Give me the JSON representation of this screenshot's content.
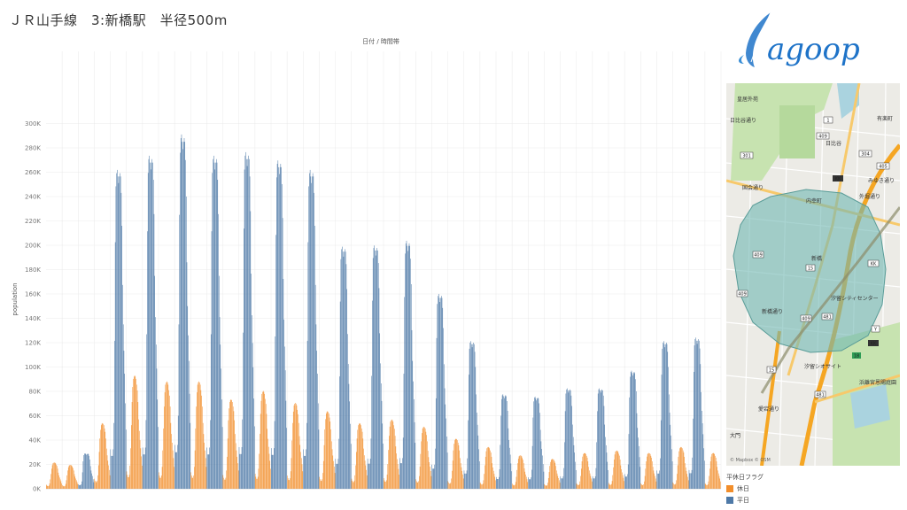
{
  "title": "ＪＲ山手線　3:新橋駅　半径500m",
  "chart_data": {
    "type": "bar",
    "xlabel": "日付 / 時間帯",
    "ylabel": "population",
    "ylim": [
      0,
      320000
    ],
    "yticks": [
      0,
      20000,
      40000,
      60000,
      80000,
      100000,
      120000,
      140000,
      160000,
      180000,
      200000,
      220000,
      240000,
      260000,
      280000,
      300000
    ],
    "ytick_labels": [
      "0K",
      "20K",
      "40K",
      "60K",
      "80K",
      "100K",
      "120K",
      "140K",
      "160K",
      "180K",
      "200K",
      "220K",
      "240K",
      "260K",
      "280K",
      "300K"
    ],
    "grid": true,
    "legend_position": "bottom-right",
    "legend_title": "平休日フラグ",
    "series": [
      {
        "name": "休日",
        "color": "#f28e2b"
      },
      {
        "name": "平日",
        "color": "#4e79a7"
      }
    ],
    "days": [
      {
        "flag": "休日",
        "peak": 22000
      },
      {
        "flag": "休日",
        "peak": 20000
      },
      {
        "flag": "平日",
        "peak": 30000
      },
      {
        "flag": "休日",
        "peak": 55000
      },
      {
        "flag": "平日",
        "peak": 270000
      },
      {
        "flag": "休日",
        "peak": 95000
      },
      {
        "flag": "平日",
        "peak": 282000
      },
      {
        "flag": "休日",
        "peak": 90000
      },
      {
        "flag": "平日",
        "peak": 300000
      },
      {
        "flag": "休日",
        "peak": 90000
      },
      {
        "flag": "平日",
        "peak": 282000
      },
      {
        "flag": "休日",
        "peak": 75000
      },
      {
        "flag": "平日",
        "peak": 285000
      },
      {
        "flag": "休日",
        "peak": 82000
      },
      {
        "flag": "平日",
        "peak": 278000
      },
      {
        "flag": "休日",
        "peak": 72000
      },
      {
        "flag": "平日",
        "peak": 270000
      },
      {
        "flag": "休日",
        "peak": 65000
      },
      {
        "flag": "平日",
        "peak": 205000
      },
      {
        "flag": "休日",
        "peak": 55000
      },
      {
        "flag": "平日",
        "peak": 206000
      },
      {
        "flag": "休日",
        "peak": 58000
      },
      {
        "flag": "平日",
        "peak": 210000
      },
      {
        "flag": "休日",
        "peak": 52000
      },
      {
        "flag": "平日",
        "peak": 165000
      },
      {
        "flag": "休日",
        "peak": 42000
      },
      {
        "flag": "平日",
        "peak": 125000
      },
      {
        "flag": "休日",
        "peak": 35000
      },
      {
        "flag": "平日",
        "peak": 80000
      },
      {
        "flag": "休日",
        "peak": 28000
      },
      {
        "flag": "平日",
        "peak": 78000
      },
      {
        "flag": "休日",
        "peak": 25000
      },
      {
        "flag": "平日",
        "peak": 85000
      },
      {
        "flag": "休日",
        "peak": 30000
      },
      {
        "flag": "平日",
        "peak": 85000
      },
      {
        "flag": "休日",
        "peak": 32000
      },
      {
        "flag": "平日",
        "peak": 100000
      },
      {
        "flag": "休日",
        "peak": 30000
      },
      {
        "flag": "平日",
        "peak": 125000
      },
      {
        "flag": "休日",
        "peak": 35000
      },
      {
        "flag": "平日",
        "peak": 128000
      },
      {
        "flag": "休日",
        "peak": 30000
      }
    ]
  },
  "map": {
    "labels": [
      "皇居外苑",
      "日比谷",
      "国会通り",
      "内幸町",
      "新橋",
      "汐留シオサイト",
      "汐留シティセンター",
      "浜離宮恩賜庭園",
      "新橋通り",
      "有楽町",
      "日比谷通り",
      "みゆき通り",
      "外堀通り",
      "愛宕通り",
      "大門"
    ],
    "credit": "© Mapbox © OSM",
    "land_color": "#ecebe6",
    "park_color": "#c7e3b0",
    "water_color": "#aad3df",
    "road_color": "#f5a623",
    "radius_fill": "#6fb7b3"
  },
  "logo": {
    "text": "agoop",
    "color": "#1e73c8"
  }
}
